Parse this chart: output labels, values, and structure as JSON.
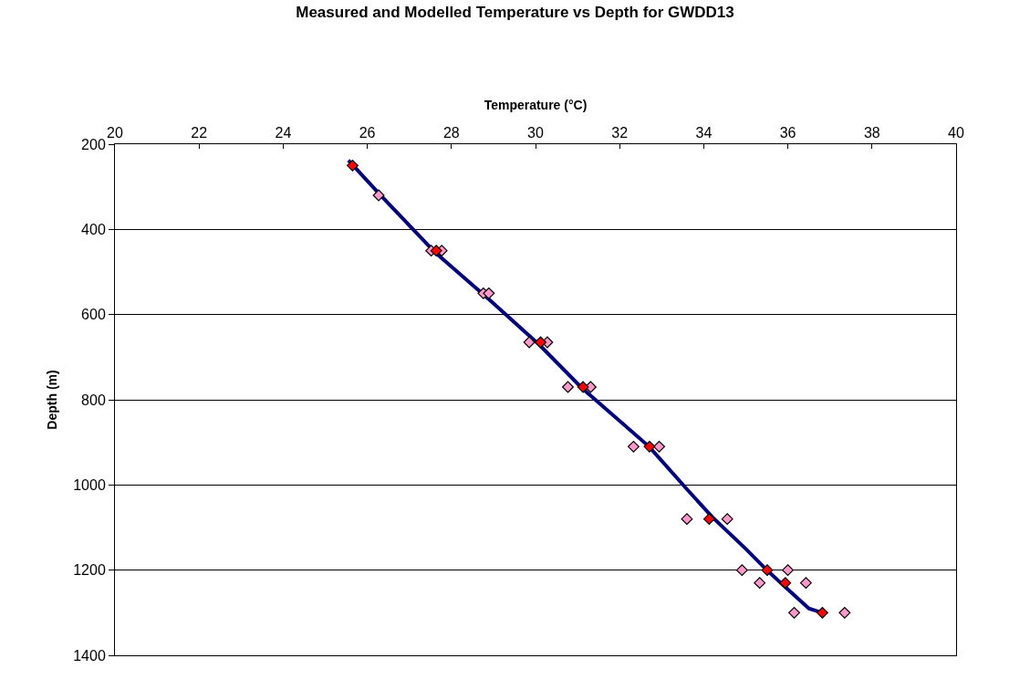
{
  "chart_data": {
    "type": "scatter",
    "title": "Measured and Modelled Temperature vs Depth for GWDD13",
    "xlabel": "Temperature (°C)",
    "ylabel": "Depth (m)",
    "xlim": [
      20,
      40
    ],
    "xticks": [
      20,
      22,
      24,
      26,
      28,
      30,
      32,
      34,
      36,
      38,
      40
    ],
    "ylim": [
      1400,
      200
    ],
    "yticks": [
      200,
      400,
      600,
      800,
      1000,
      1200,
      1400
    ],
    "grid": "y",
    "marker": "diamond",
    "series": [
      {
        "type": "line",
        "color": "#000080",
        "marker": "none",
        "line_style": "solid",
        "x": [
          25.55,
          26.3,
          27.6,
          28.9,
          30.1,
          31.1,
          32.7,
          33.6,
          34.2,
          35.0,
          35.5,
          36.0,
          36.5,
          36.75
        ],
        "values": [
          238,
          318,
          453,
          565,
          672,
          772,
          910,
          1010,
          1075,
          1150,
          1200,
          1245,
          1290,
          1298
        ]
      },
      {
        "color": "#ff99cc",
        "x": [
          26.27,
          27.52,
          27.77,
          28.76,
          28.89,
          29.85,
          30.28,
          30.77,
          31.31,
          32.33,
          32.94,
          33.6,
          34.56,
          34.91,
          36.0,
          35.33,
          36.43,
          36.15,
          37.35
        ],
        "values": [
          320,
          450,
          450,
          550,
          550,
          665,
          665,
          770,
          770,
          910,
          910,
          1080,
          1080,
          1200,
          1200,
          1230,
          1230,
          1300,
          1300
        ]
      },
      {
        "color": "#ff0000",
        "x": [
          25.65,
          27.64,
          30.12,
          31.13,
          32.71,
          34.13,
          35.51,
          35.94,
          36.82
        ],
        "values": [
          250,
          450,
          665,
          770,
          910,
          1080,
          1200,
          1230,
          1300
        ]
      }
    ]
  }
}
